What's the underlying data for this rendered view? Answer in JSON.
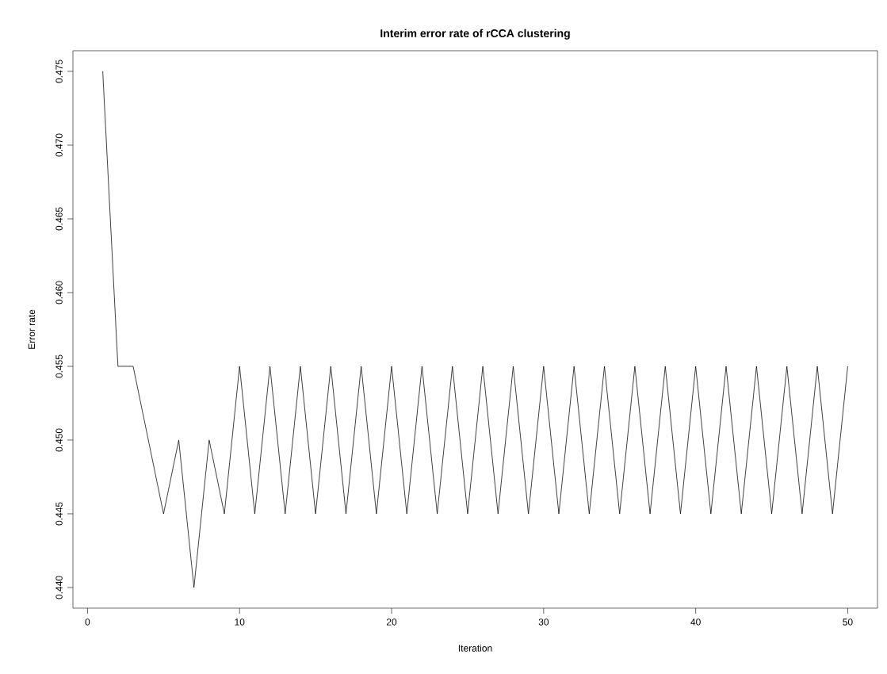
{
  "chart_data": {
    "type": "line",
    "title": "Interim error rate of rCCA clustering",
    "xlabel": "Iteration",
    "ylabel": "Error rate",
    "x": [
      1,
      2,
      3,
      4,
      5,
      6,
      7,
      8,
      9,
      10,
      11,
      12,
      13,
      14,
      15,
      16,
      17,
      18,
      19,
      20,
      21,
      22,
      23,
      24,
      25,
      26,
      27,
      28,
      29,
      30,
      31,
      32,
      33,
      34,
      35,
      36,
      37,
      38,
      39,
      40,
      41,
      42,
      43,
      44,
      45,
      46,
      47,
      48,
      49,
      50
    ],
    "series": [
      {
        "color": "#000000",
        "values": [
          0.475,
          0.455,
          0.455,
          0.45,
          0.445,
          0.45,
          0.44,
          0.45,
          0.445,
          0.455,
          0.445,
          0.455,
          0.445,
          0.455,
          0.445,
          0.455,
          0.445,
          0.455,
          0.445,
          0.455,
          0.445,
          0.455,
          0.445,
          0.455,
          0.445,
          0.455,
          0.445,
          0.455,
          0.445,
          0.455,
          0.445,
          0.455,
          0.445,
          0.455,
          0.445,
          0.455,
          0.445,
          0.455,
          0.445,
          0.455,
          0.445,
          0.455,
          0.445,
          0.455,
          0.445,
          0.455,
          0.445,
          0.455,
          0.445,
          0.455
        ]
      }
    ],
    "xlim": [
      -0.96,
      51.96
    ],
    "ylim": [
      0.4386,
      0.4764
    ],
    "xticks": [
      0,
      10,
      20,
      30,
      40,
      50
    ],
    "yticks": [
      {
        "value": 0.44,
        "label": "0.440"
      },
      {
        "value": 0.445,
        "label": "0.445"
      },
      {
        "value": 0.45,
        "label": "0.450"
      },
      {
        "value": 0.455,
        "label": "0.455"
      },
      {
        "value": 0.46,
        "label": "0.460"
      },
      {
        "value": 0.465,
        "label": "0.465"
      },
      {
        "value": 0.47,
        "label": "0.470"
      },
      {
        "value": 0.475,
        "label": "0.475"
      }
    ]
  }
}
